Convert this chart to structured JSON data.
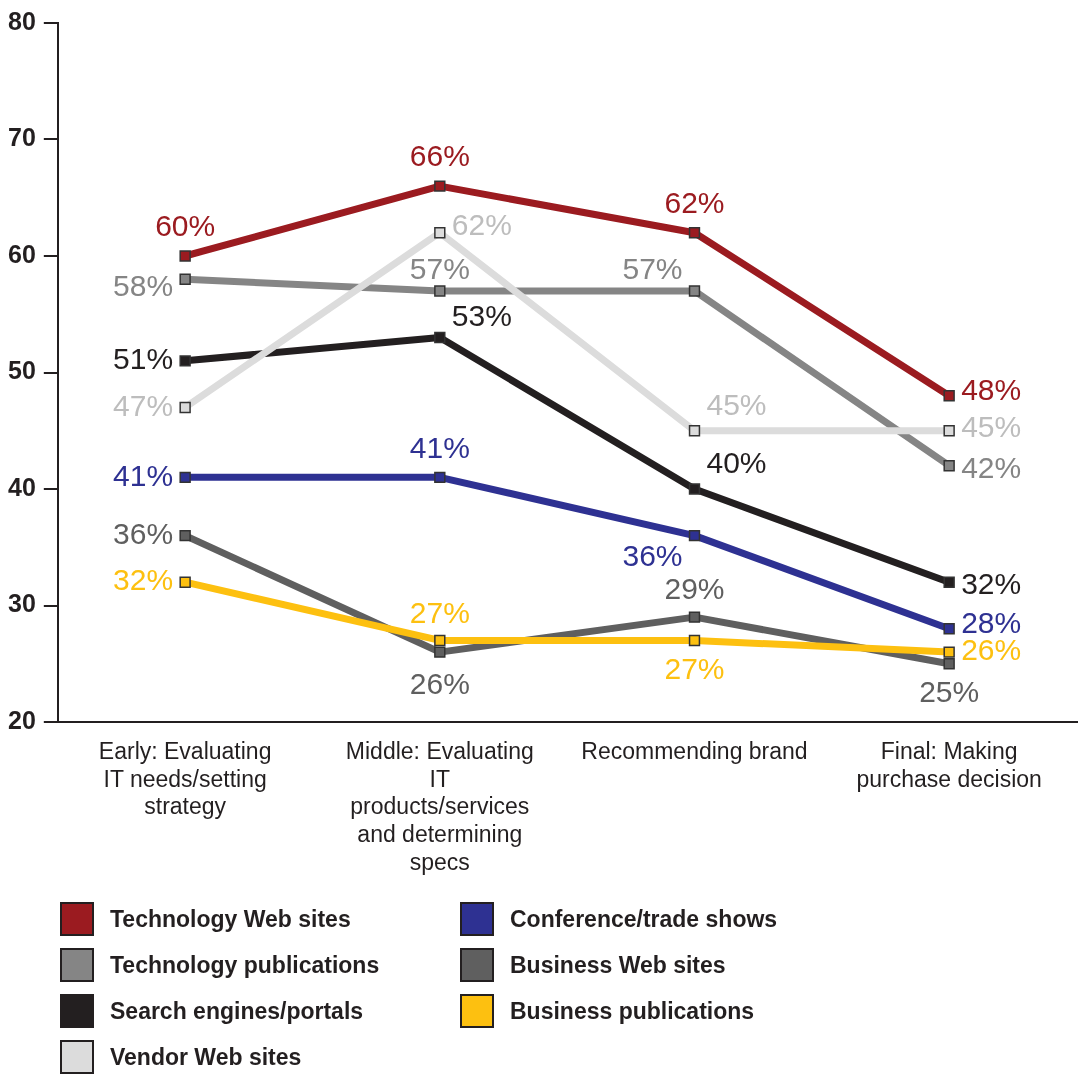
{
  "chart_data": {
    "type": "line",
    "categories": [
      "Early: Evaluating IT needs/setting strategy",
      "Middle: Evaluating IT products/services and determining specs",
      "Recommending brand",
      "Final: Making purchase decision"
    ],
    "ylim": [
      20,
      80
    ],
    "yticks": [
      20,
      30,
      40,
      50,
      60,
      70,
      80
    ],
    "grid": false,
    "legend": "bottom",
    "marker": "square",
    "line_style": "solid",
    "series": [
      {
        "name": "Technology Web sites",
        "color": "#9b1b20",
        "values": [
          60,
          66,
          62,
          48
        ],
        "value_labels": [
          "60%",
          "66%",
          "62%",
          "48%"
        ]
      },
      {
        "name": "Technology publications",
        "color": "#858585",
        "values": [
          58,
          57,
          57,
          42
        ],
        "value_labels": [
          "58%",
          "57%",
          "57%",
          "42%"
        ]
      },
      {
        "name": "Search engines/portals",
        "color": "#231f20",
        "values": [
          51,
          53,
          40,
          32
        ],
        "value_labels": [
          "51%",
          "53%",
          "40%",
          "32%"
        ]
      },
      {
        "name": "Vendor Web sites",
        "color": "#dcdcdc",
        "values": [
          47,
          62,
          45,
          45
        ],
        "value_labels": [
          "47%",
          "62%",
          "45%",
          "45%"
        ]
      },
      {
        "name": "Conference/trade shows",
        "color": "#2e3192",
        "values": [
          41,
          41,
          36,
          28
        ],
        "value_labels": [
          "41%",
          "41%",
          "36%",
          "28%"
        ]
      },
      {
        "name": "Business Web sites",
        "color": "#5f5f5f",
        "values": [
          36,
          26,
          29,
          25
        ],
        "value_labels": [
          "36%",
          "26%",
          "29%",
          "25%"
        ]
      },
      {
        "name": "Business publications",
        "color": "#fdc010",
        "values": [
          32,
          27,
          27,
          26
        ],
        "value_labels": [
          "32%",
          "27%",
          "27%",
          "26%"
        ]
      }
    ]
  }
}
